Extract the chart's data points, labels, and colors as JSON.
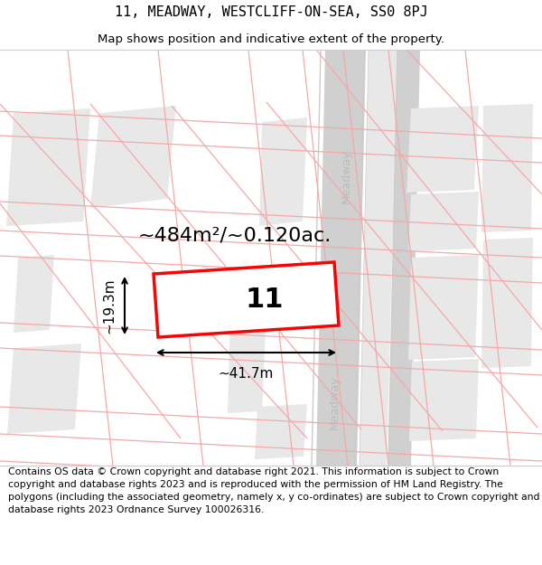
{
  "title_line1": "11, MEADWAY, WESTCLIFF-ON-SEA, SS0 8PJ",
  "title_line2": "Map shows position and indicative extent of the property.",
  "footer_text": "Contains OS data © Crown copyright and database right 2021. This information is subject to Crown copyright and database rights 2023 and is reproduced with the permission of HM Land Registry. The polygons (including the associated geometry, namely x, y co-ordinates) are subject to Crown copyright and database rights 2023 Ordnance Survey 100026316.",
  "background_color": "#ffffff",
  "plot_color": "#e8e8e8",
  "road_color": "#d8d8d8",
  "parcel_line_color": "#f5a8a8",
  "highlight_color": "#ff0000",
  "highlight_fill": "#ffffff",
  "label_number": "11",
  "area_label": "~484m²/~0.120ac.",
  "width_label": "~41.7m",
  "height_label": "~19.3m",
  "meadway_label": "Meadway",
  "title_fontsize": 11,
  "subtitle_fontsize": 9.5,
  "footer_fontsize": 7.8,
  "label_fontsize": 22,
  "area_fontsize": 16,
  "dim_fontsize": 11
}
